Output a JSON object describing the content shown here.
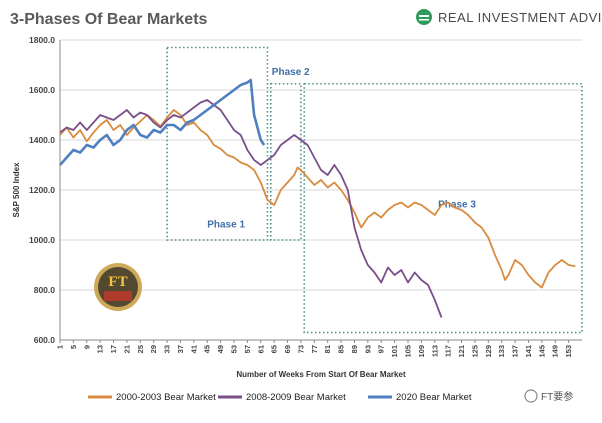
{
  "header": {
    "title": "3-Phases Of Bear Markets",
    "brand": "REAL INVESTMENT ADVICE"
  },
  "watermark": {
    "logo_text": "FT",
    "text": "FT要参"
  },
  "colors": {
    "series_2000": "#d98c3f",
    "series_2008": "#7a4f8a",
    "series_2020": "#4f7fbf",
    "phase_box": "#4d8f86",
    "phase_label": "#3d6fa8",
    "grid": "#d9d9d9",
    "brand_accent": "#2d9a5a"
  },
  "chart_data": {
    "type": "line",
    "title": "3-Phases Of Bear Markets",
    "xlabel": "Number of Weeks From Start Of Bear Market",
    "ylabel": "S&P 500 Index",
    "ylim": [
      600,
      1800
    ],
    "xlim": [
      1,
      157
    ],
    "yticks": [
      "600.0",
      "800.0",
      "1000.0",
      "1200.0",
      "1400.0",
      "1600.0",
      "1800.0"
    ],
    "xticks": [
      "1",
      "5",
      "9",
      "13",
      "17",
      "21",
      "25",
      "29",
      "33",
      "37",
      "41",
      "45",
      "49",
      "53",
      "57",
      "61",
      "65",
      "69",
      "73",
      "77",
      "81",
      "85",
      "89",
      "93",
      "97",
      "101",
      "105",
      "109",
      "113",
      "117",
      "121",
      "125",
      "129",
      "133",
      "137",
      "141",
      "145",
      "149",
      "153"
    ],
    "grid": "horizontal",
    "legend_position": "bottom",
    "phases": [
      {
        "label": "Phase 1",
        "x_range": [
          33,
          63
        ],
        "y_range": [
          1000,
          1770
        ]
      },
      {
        "label": "Phase 2",
        "x_range": [
          64,
          73
        ],
        "y_range": [
          1000,
          1625
        ]
      },
      {
        "label": "Phase 3",
        "x_range": [
          74,
          157
        ],
        "y_range": [
          630,
          1625
        ]
      }
    ],
    "series": [
      {
        "name": "2000-2003 Bear Market",
        "color": "#d98c3f",
        "points": [
          [
            1,
            1420
          ],
          [
            3,
            1450
          ],
          [
            5,
            1410
          ],
          [
            7,
            1440
          ],
          [
            9,
            1395
          ],
          [
            11,
            1430
          ],
          [
            13,
            1460
          ],
          [
            15,
            1480
          ],
          [
            17,
            1440
          ],
          [
            19,
            1460
          ],
          [
            21,
            1420
          ],
          [
            23,
            1450
          ],
          [
            25,
            1475
          ],
          [
            27,
            1500
          ],
          [
            29,
            1480
          ],
          [
            31,
            1455
          ],
          [
            33,
            1490
          ],
          [
            35,
            1520
          ],
          [
            37,
            1500
          ],
          [
            39,
            1460
          ],
          [
            41,
            1470
          ],
          [
            43,
            1440
          ],
          [
            45,
            1420
          ],
          [
            47,
            1380
          ],
          [
            49,
            1365
          ],
          [
            51,
            1340
          ],
          [
            53,
            1330
          ],
          [
            55,
            1310
          ],
          [
            57,
            1300
          ],
          [
            59,
            1280
          ],
          [
            61,
            1230
          ],
          [
            63,
            1160
          ],
          [
            65,
            1140
          ],
          [
            67,
            1200
          ],
          [
            69,
            1230
          ],
          [
            71,
            1260
          ],
          [
            72,
            1290
          ],
          [
            73,
            1280
          ],
          [
            75,
            1250
          ],
          [
            77,
            1220
          ],
          [
            79,
            1240
          ],
          [
            81,
            1210
          ],
          [
            83,
            1230
          ],
          [
            85,
            1200
          ],
          [
            87,
            1160
          ],
          [
            89,
            1110
          ],
          [
            91,
            1050
          ],
          [
            93,
            1090
          ],
          [
            95,
            1110
          ],
          [
            97,
            1090
          ],
          [
            99,
            1120
          ],
          [
            101,
            1140
          ],
          [
            103,
            1150
          ],
          [
            105,
            1130
          ],
          [
            107,
            1150
          ],
          [
            109,
            1140
          ],
          [
            111,
            1120
          ],
          [
            113,
            1100
          ],
          [
            115,
            1140
          ],
          [
            117,
            1150
          ],
          [
            119,
            1130
          ],
          [
            121,
            1120
          ],
          [
            123,
            1100
          ],
          [
            125,
            1070
          ],
          [
            127,
            1050
          ],
          [
            129,
            1010
          ],
          [
            131,
            940
          ],
          [
            133,
            880
          ],
          [
            134,
            840
          ],
          [
            135,
            860
          ],
          [
            137,
            920
          ],
          [
            139,
            900
          ],
          [
            141,
            860
          ],
          [
            143,
            830
          ],
          [
            145,
            810
          ],
          [
            147,
            870
          ],
          [
            149,
            900
          ],
          [
            151,
            920
          ],
          [
            153,
            900
          ],
          [
            155,
            895
          ]
        ]
      },
      {
        "name": "2008-2009 Bear Market",
        "color": "#7a4f8a",
        "points": [
          [
            1,
            1430
          ],
          [
            3,
            1450
          ],
          [
            5,
            1440
          ],
          [
            7,
            1470
          ],
          [
            9,
            1440
          ],
          [
            11,
            1470
          ],
          [
            13,
            1500
          ],
          [
            15,
            1490
          ],
          [
            17,
            1480
          ],
          [
            19,
            1500
          ],
          [
            21,
            1520
          ],
          [
            23,
            1490
          ],
          [
            25,
            1510
          ],
          [
            27,
            1500
          ],
          [
            29,
            1470
          ],
          [
            31,
            1450
          ],
          [
            33,
            1480
          ],
          [
            35,
            1500
          ],
          [
            37,
            1490
          ],
          [
            39,
            1510
          ],
          [
            41,
            1530
          ],
          [
            43,
            1550
          ],
          [
            45,
            1560
          ],
          [
            47,
            1540
          ],
          [
            49,
            1520
          ],
          [
            51,
            1480
          ],
          [
            53,
            1440
          ],
          [
            55,
            1420
          ],
          [
            57,
            1360
          ],
          [
            59,
            1320
          ],
          [
            61,
            1300
          ],
          [
            63,
            1320
          ],
          [
            65,
            1340
          ],
          [
            67,
            1380
          ],
          [
            69,
            1400
          ],
          [
            71,
            1420
          ],
          [
            73,
            1400
          ],
          [
            75,
            1380
          ],
          [
            77,
            1330
          ],
          [
            79,
            1280
          ],
          [
            81,
            1260
          ],
          [
            83,
            1300
          ],
          [
            85,
            1260
          ],
          [
            87,
            1200
          ],
          [
            89,
            1050
          ],
          [
            91,
            960
          ],
          [
            93,
            900
          ],
          [
            95,
            870
          ],
          [
            97,
            830
          ],
          [
            99,
            890
          ],
          [
            101,
            860
          ],
          [
            103,
            880
          ],
          [
            105,
            830
          ],
          [
            107,
            870
          ],
          [
            109,
            840
          ],
          [
            111,
            820
          ],
          [
            113,
            760
          ],
          [
            115,
            690
          ]
        ]
      },
      {
        "name": "2020 Bear Market",
        "color": "#4f7fbf",
        "points": [
          [
            1,
            1300
          ],
          [
            3,
            1330
          ],
          [
            5,
            1360
          ],
          [
            7,
            1350
          ],
          [
            9,
            1380
          ],
          [
            11,
            1370
          ],
          [
            13,
            1400
          ],
          [
            15,
            1420
          ],
          [
            17,
            1380
          ],
          [
            19,
            1400
          ],
          [
            21,
            1440
          ],
          [
            23,
            1460
          ],
          [
            25,
            1420
          ],
          [
            27,
            1410
          ],
          [
            29,
            1440
          ],
          [
            31,
            1430
          ],
          [
            33,
            1460
          ],
          [
            35,
            1460
          ],
          [
            37,
            1440
          ],
          [
            39,
            1470
          ],
          [
            41,
            1480
          ],
          [
            43,
            1500
          ],
          [
            45,
            1520
          ],
          [
            47,
            1540
          ],
          [
            49,
            1560
          ],
          [
            51,
            1580
          ],
          [
            53,
            1600
          ],
          [
            55,
            1620
          ],
          [
            57,
            1630
          ],
          [
            58,
            1640
          ],
          [
            59,
            1500
          ],
          [
            61,
            1400
          ],
          [
            62,
            1380
          ]
        ]
      }
    ]
  }
}
